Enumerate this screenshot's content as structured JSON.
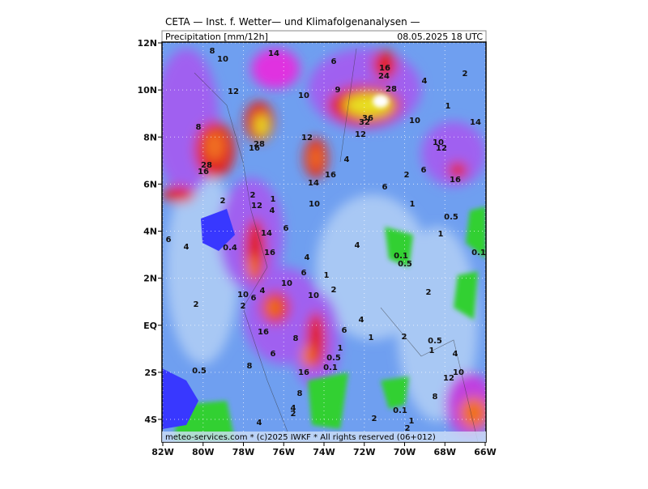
{
  "header": {
    "title": "CETA — Inst. f. Wetter— und Klimafolgenanalysen —",
    "parameter": "Precipitation [mm/12h]",
    "valid_time": "08.05.2025 18 UTC"
  },
  "footer": "meteo-services.com * (c)2025 IWKF * All rights reserved (06+012)",
  "lat_ticks": [
    {
      "value": 12,
      "label": "12N"
    },
    {
      "value": 10,
      "label": "10N"
    },
    {
      "value": 8,
      "label": "8N"
    },
    {
      "value": 6,
      "label": "6N"
    },
    {
      "value": 4,
      "label": "4N"
    },
    {
      "value": 2,
      "label": "2N"
    },
    {
      "value": 0,
      "label": "EQ"
    },
    {
      "value": -2,
      "label": "2S"
    },
    {
      "value": -4,
      "label": "4S"
    }
  ],
  "lon_ticks": [
    {
      "value": -82,
      "label": "82W"
    },
    {
      "value": -80,
      "label": "80W"
    },
    {
      "value": -78,
      "label": "78W"
    },
    {
      "value": -76,
      "label": "76W"
    },
    {
      "value": -74,
      "label": "74W"
    },
    {
      "value": -72,
      "label": "72W"
    },
    {
      "value": -70,
      "label": "70W"
    },
    {
      "value": -68,
      "label": "68W"
    },
    {
      "value": -66,
      "label": "66W"
    }
  ],
  "contour_labels": [
    "10",
    "8",
    "14",
    "6",
    "16",
    "24",
    "28",
    "12",
    "10",
    "9",
    "4",
    "2",
    "1",
    "8",
    "36",
    "32",
    "10",
    "14",
    "12",
    "12",
    "10",
    "12",
    "28",
    "16",
    "28",
    "16",
    "4",
    "2",
    "6",
    "16",
    "14",
    "16",
    "6",
    "2",
    "2",
    "12",
    "4",
    "1",
    "10",
    "1",
    "0.5",
    "6",
    "4",
    "14",
    "6",
    "4",
    "1",
    "0.4",
    "16",
    "4",
    "0.1",
    "0.5",
    "0.1",
    "6",
    "10",
    "10",
    "4",
    "2",
    "1",
    "10",
    "2",
    "6",
    "2",
    "2",
    "4",
    "6",
    "1",
    "2",
    "0.5",
    "16",
    "8",
    "1",
    "6",
    "0.5",
    "0.1",
    "8",
    "10",
    "12",
    "4",
    "1",
    "0.5",
    "16",
    "8",
    "8",
    "4",
    "2",
    "2",
    "0.1",
    "1",
    "4",
    "2"
  ]
}
